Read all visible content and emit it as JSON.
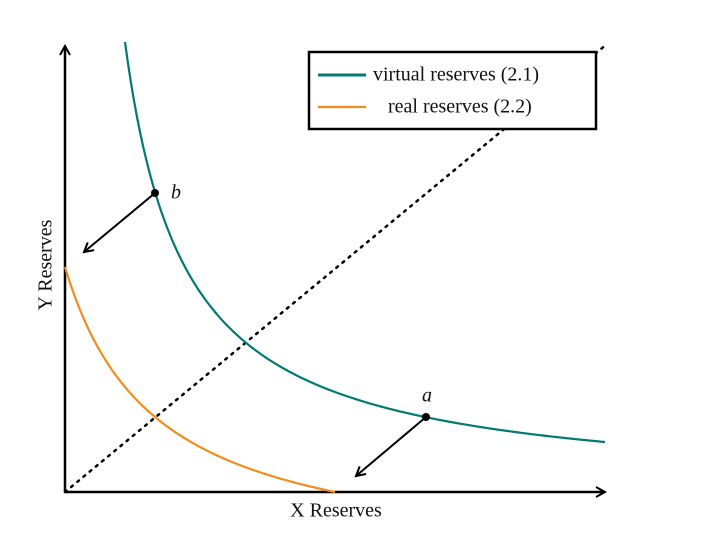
{
  "axes": {
    "x_label": "X Reserves",
    "y_label": "Y Reserves"
  },
  "legend": {
    "entries": [
      {
        "label": "virtual reserves (2.1)"
      },
      {
        "label": "real reserves (2.2)"
      }
    ]
  },
  "points": [
    {
      "label": "a"
    },
    {
      "label": "b"
    }
  ]
}
